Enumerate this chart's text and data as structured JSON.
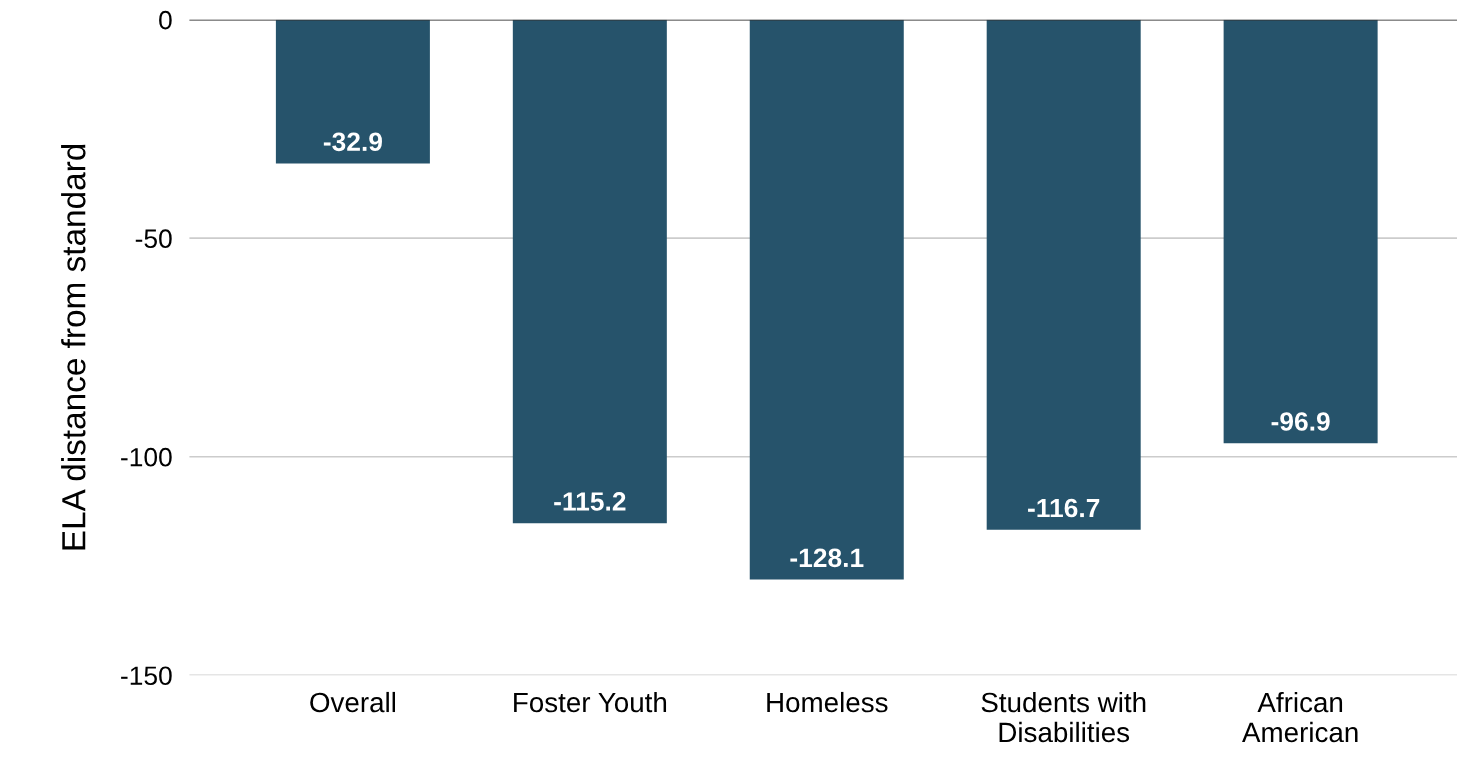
{
  "chart_data": {
    "type": "bar",
    "ylabel": "ELA distance from standard",
    "categories": [
      "Overall",
      "Foster Youth",
      "Homeless",
      "Students with\nDisabilities",
      "African\nAmerican"
    ],
    "values": [
      -32.9,
      -115.2,
      -128.1,
      -116.7,
      -96.9
    ],
    "color": "#26536b",
    "ylim": [
      -150,
      0
    ],
    "yticks": [
      0,
      -50,
      -100,
      -150
    ],
    "grid": "y",
    "data_labels": true
  }
}
